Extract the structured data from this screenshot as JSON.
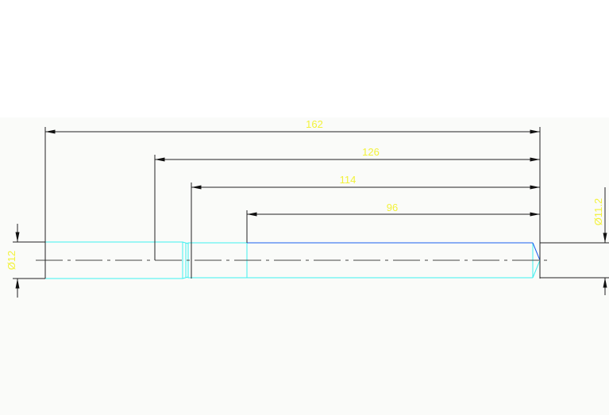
{
  "drawing": {
    "dimensions": {
      "overall_length": "162",
      "length_126": "126",
      "length_114": "114",
      "length_96": "96",
      "left_diameter": "Ø12",
      "right_diameter": "Ø11.2"
    },
    "colors": {
      "background": "#fafbf9",
      "dimension_text": "#f2f23a",
      "dimension_line": "#222222",
      "part_outline": "#3ff0f0",
      "highlight_edge": "#1a5ff0",
      "centerline": "#444444"
    }
  }
}
